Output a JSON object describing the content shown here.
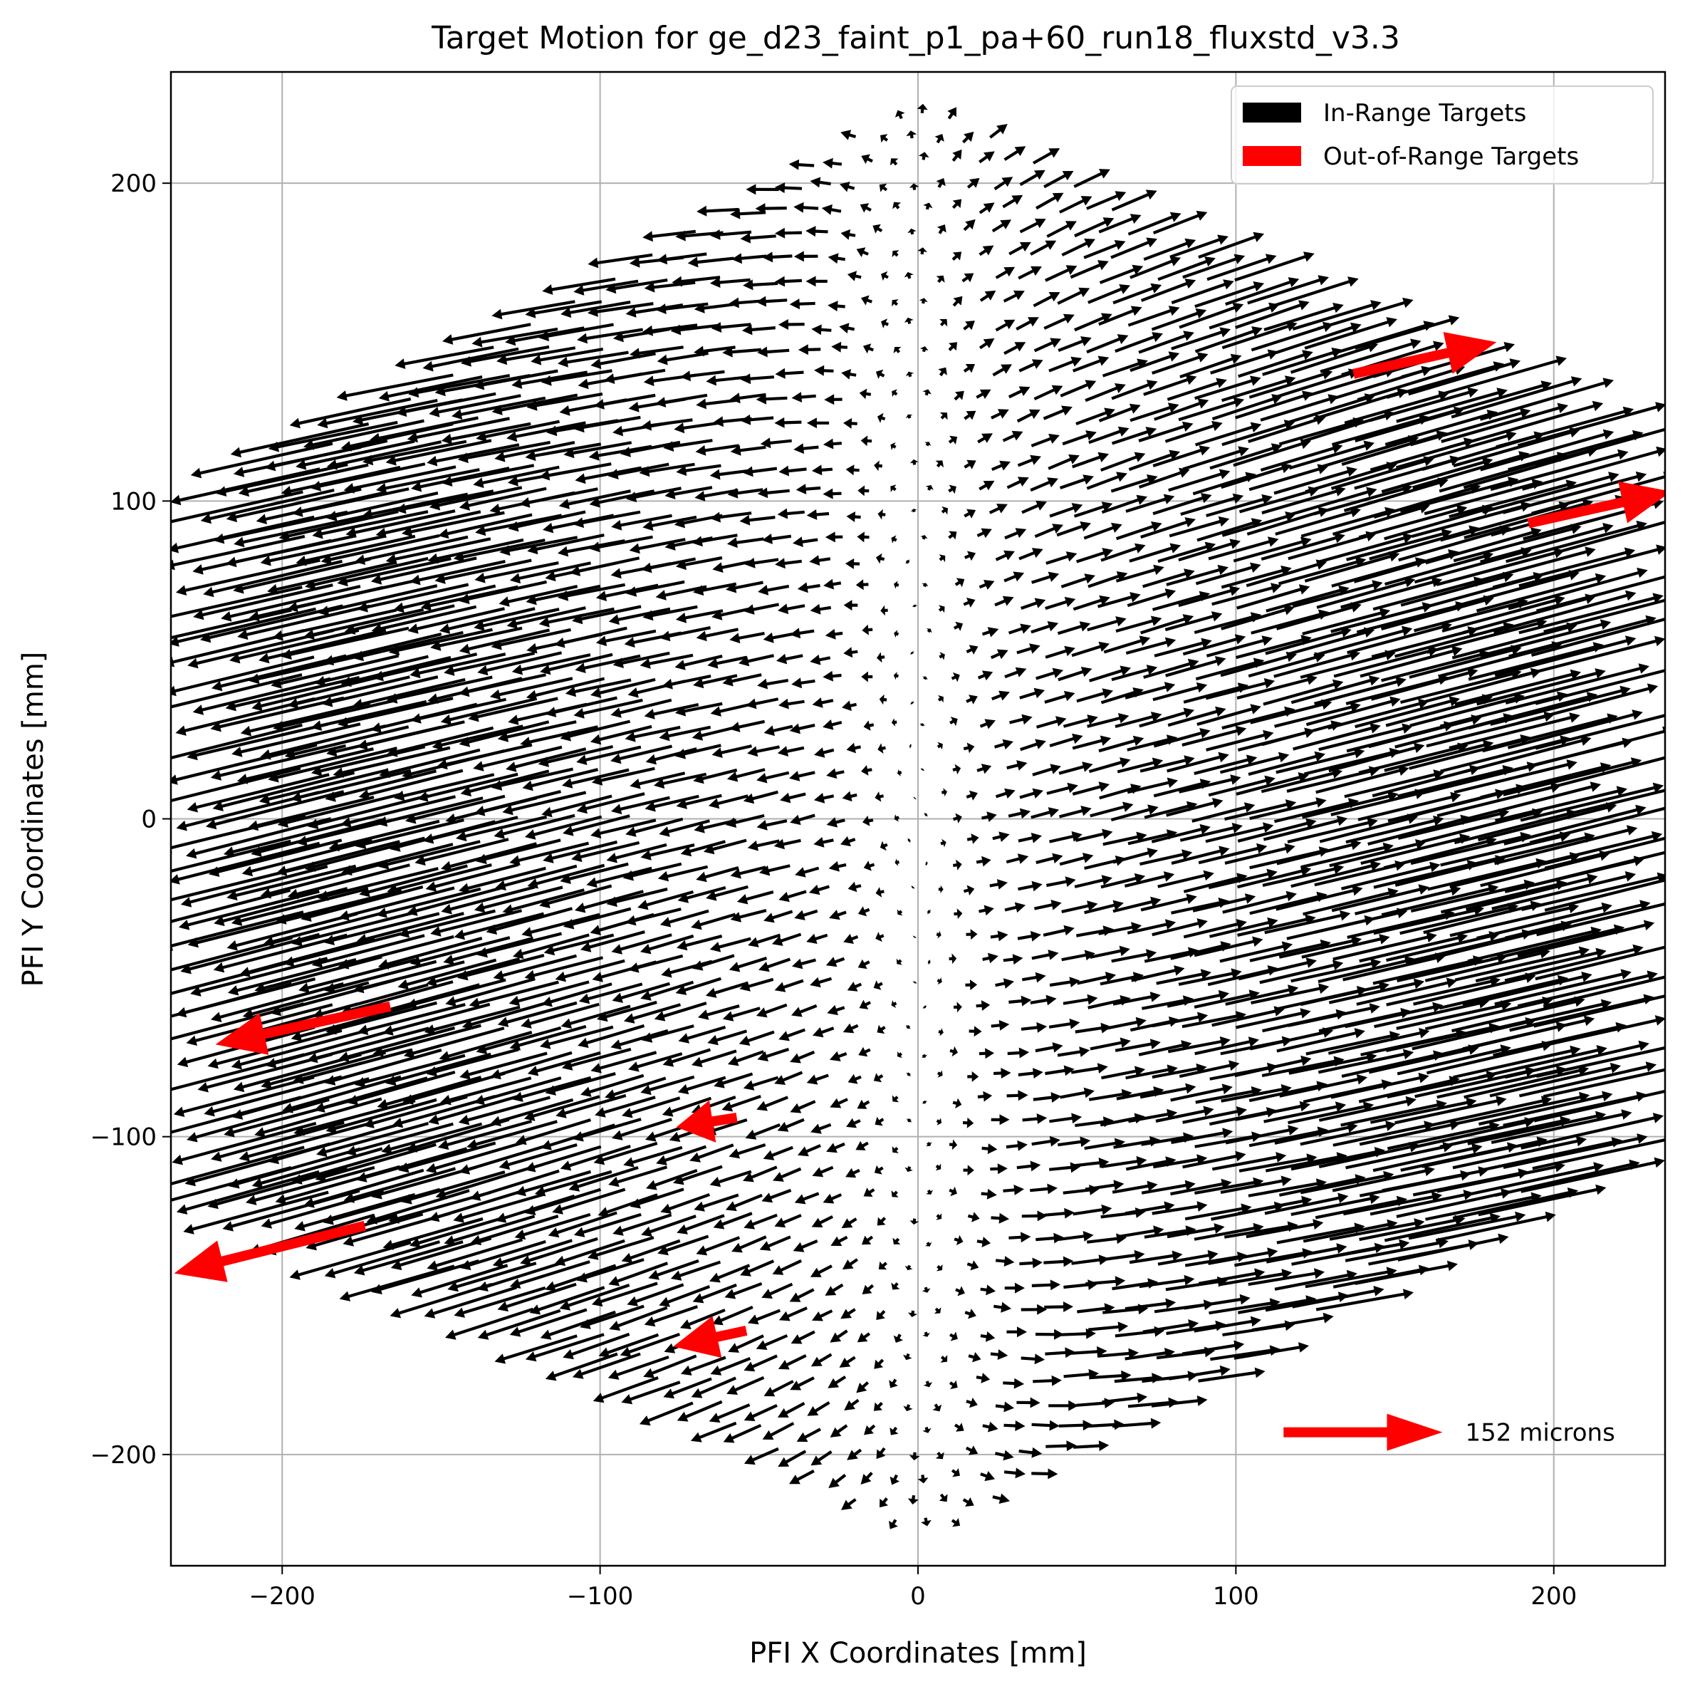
{
  "chart_data": {
    "type": "quiver",
    "title": "Target Motion for ge_d23_faint_p1_pa+60_run18_fluxstd_v3.3",
    "xlabel": "PFI X Coordinates [mm]",
    "ylabel": "PFI Y Coordinates [mm]",
    "xlim": [
      -235,
      235
    ],
    "ylim": [
      -235,
      235
    ],
    "xticks": [
      -200,
      -100,
      0,
      100,
      200
    ],
    "yticks": [
      -200,
      -100,
      0,
      100,
      200
    ],
    "xtick_labels": [
      "−200",
      "−100",
      "0",
      "100",
      "200"
    ],
    "ytick_labels": [
      "−200",
      "−100",
      "0",
      "100",
      "200"
    ],
    "grid": true,
    "legend": {
      "position": "top-right",
      "entries": [
        {
          "label": "In-Range Targets",
          "color": "#000000"
        },
        {
          "label": "Out-of-Range Targets",
          "color": "#ff0000"
        }
      ]
    },
    "field_model": {
      "description_pattern": "displacement roughly proportional to x, pointing outward along x with a slight upward tilt",
      "hex_circumradius_mm": 228,
      "grid_spacing_mm": 8.5,
      "arrow_scale_mm_per_mm": 0.24,
      "tilt_slope": 0.25
    },
    "out_of_range": [
      {
        "x": 137,
        "y": 140,
        "u": 45,
        "v": 10
      },
      {
        "x": 192,
        "y": 93,
        "u": 45,
        "v": 10
      },
      {
        "x": -166,
        "y": -59,
        "u": -55,
        "v": -12
      },
      {
        "x": -57,
        "y": -94,
        "u": -19,
        "v": -3
      },
      {
        "x": -174,
        "y": -128,
        "u": -60,
        "v": -15
      },
      {
        "x": -54,
        "y": -161,
        "u": -23,
        "v": -5
      }
    ],
    "quiver_key": {
      "label": "152 microns",
      "x": 115,
      "y": -193,
      "u": 50,
      "v": 0,
      "color": "#ff0000"
    },
    "colors": {
      "in_range": "#000000",
      "out_of_range": "#ff0000",
      "grid": "#b0b0b0"
    }
  }
}
